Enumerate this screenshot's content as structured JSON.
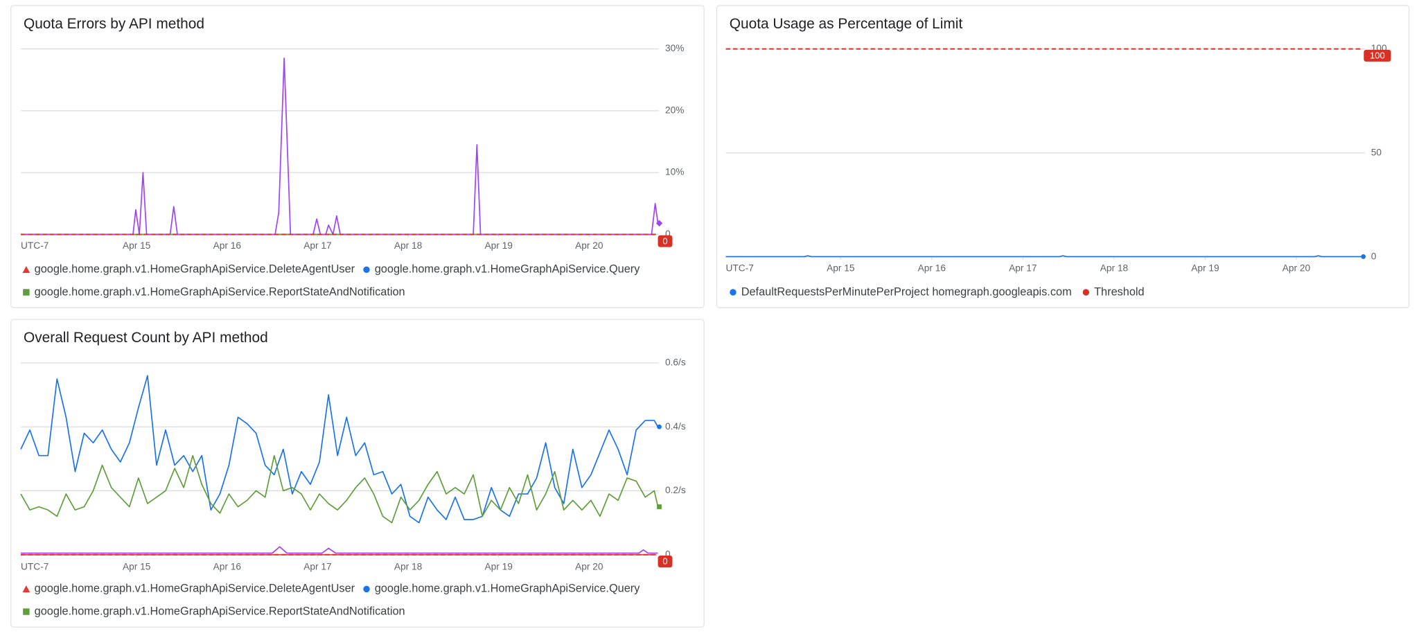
{
  "chart_data": [
    {
      "type": "line",
      "title": "Quota Errors by API method",
      "timezone_label": "UTC-7",
      "xlim": [
        13.72,
        20.74
      ],
      "xticks": [
        {
          "value": 15,
          "label": "Apr 15"
        },
        {
          "value": 16,
          "label": "Apr 16"
        },
        {
          "value": 17,
          "label": "Apr 17"
        },
        {
          "value": 18,
          "label": "Apr 18"
        },
        {
          "value": 19,
          "label": "Apr 19"
        },
        {
          "value": 20,
          "label": "Apr 20"
        }
      ],
      "ylim": [
        0,
        30
      ],
      "yticks": [
        0,
        {
          "value": 10,
          "label": "10%"
        },
        {
          "value": 20,
          "label": "20%"
        },
        {
          "value": 30,
          "label": "30%"
        }
      ],
      "grid": true,
      "threshold": {
        "value": 0,
        "color": "#d93025"
      },
      "series": [
        {
          "name": "google.home.graph.v1.HomeGraphApiService.DeleteAgentUser",
          "color": "#e53935",
          "marker": "triangle",
          "x": [
            13.72,
            20.74
          ],
          "values": [
            0,
            0
          ]
        },
        {
          "name": "google.home.graph.v1.HomeGraphApiService.Query",
          "color": "#1a73e8",
          "marker": "circle",
          "x": [
            13.72,
            20.74
          ],
          "values": [
            0,
            0
          ]
        },
        {
          "name": "google.home.graph.v1.HomeGraphApiService.ReportStateAndNotification",
          "color": "#5f9e3a",
          "marker": "square",
          "x": [
            13.72,
            20.74
          ],
          "values": [
            0,
            0
          ]
        },
        {
          "color": "#a142f4",
          "marker": "diamond",
          "end_marker": true,
          "x": [
            13.72,
            14.96,
            14.99,
            15.03,
            15.07,
            15.11,
            15.37,
            15.41,
            15.45,
            16.53,
            16.57,
            16.63,
            16.7,
            16.95,
            16.99,
            17.03,
            17.09,
            17.12,
            17.17,
            17.21,
            17.25,
            18.72,
            18.76,
            18.8,
            20.69,
            20.73,
            20.76
          ],
          "values": [
            0,
            0,
            4,
            0,
            10,
            0,
            0,
            4.5,
            0,
            0,
            3.5,
            28.5,
            0,
            0,
            2.5,
            0,
            0,
            1.5,
            0,
            3,
            0,
            0,
            14.5,
            0,
            0,
            5,
            1.8
          ]
        }
      ]
    },
    {
      "type": "line",
      "title": "Quota Usage as Percentage of Limit",
      "timezone_label": "UTC-7",
      "xlim": [
        13.74,
        20.72
      ],
      "xticks": [
        {
          "value": 15,
          "label": "Apr 15"
        },
        {
          "value": 16,
          "label": "Apr 16"
        },
        {
          "value": 17,
          "label": "Apr 17"
        },
        {
          "value": 18,
          "label": "Apr 18"
        },
        {
          "value": 19,
          "label": "Apr 19"
        },
        {
          "value": 20,
          "label": "Apr 20"
        }
      ],
      "ylim": [
        0,
        100
      ],
      "yticks": [
        0,
        50,
        100
      ],
      "grid": true,
      "threshold": {
        "name": "Threshold",
        "value": 100,
        "color": "#d93025"
      },
      "series": [
        {
          "name": "DefaultRequestsPerMinutePerProject homegraph.googleapis.com",
          "color": "#1a73e8",
          "marker": "circle",
          "end_marker": true,
          "x": [
            13.74,
            14.6,
            14.64,
            14.68,
            15.0,
            17.4,
            17.44,
            17.48,
            20.2,
            20.24,
            20.28,
            20.72
          ],
          "values": [
            0.2,
            0.2,
            0.6,
            0.2,
            0.2,
            0.2,
            0.6,
            0.2,
            0.2,
            0.6,
            0.2,
            0.2
          ]
        }
      ]
    },
    {
      "type": "line",
      "title": "Overall Request Count by API method",
      "timezone_label": "UTC-7",
      "xlim": [
        13.72,
        20.74
      ],
      "xticks": [
        {
          "value": 15,
          "label": "Apr 15"
        },
        {
          "value": 16,
          "label": "Apr 16"
        },
        {
          "value": 17,
          "label": "Apr 17"
        },
        {
          "value": 18,
          "label": "Apr 18"
        },
        {
          "value": 19,
          "label": "Apr 19"
        },
        {
          "value": 20,
          "label": "Apr 20"
        }
      ],
      "ylim": [
        0,
        0.6
      ],
      "yticks": [
        0,
        {
          "value": 0.2,
          "label": "0.2/s"
        },
        {
          "value": 0.4,
          "label": "0.4/s"
        },
        {
          "value": 0.6,
          "label": "0.6/s"
        }
      ],
      "grid": true,
      "threshold": {
        "value": 0,
        "color": "#d93025"
      },
      "series": [
        {
          "name": "google.home.graph.v1.HomeGraphApiService.DeleteAgentUser",
          "color": "#e53935",
          "marker": "triangle",
          "x": [
            13.72,
            20.74
          ],
          "values": [
            0,
            0
          ]
        },
        {
          "name": "google.home.graph.v1.HomeGraphApiService.Query",
          "color": "#1a73e8",
          "marker": "circle",
          "end_marker": true,
          "x": [
            13.72,
            13.82,
            13.92,
            14.02,
            14.12,
            14.22,
            14.32,
            14.42,
            14.52,
            14.62,
            14.72,
            14.82,
            14.92,
            15.02,
            15.12,
            15.22,
            15.32,
            15.42,
            15.52,
            15.62,
            15.72,
            15.82,
            15.92,
            16.02,
            16.12,
            16.22,
            16.32,
            16.42,
            16.52,
            16.62,
            16.72,
            16.82,
            16.92,
            17.02,
            17.12,
            17.22,
            17.32,
            17.42,
            17.52,
            17.62,
            17.72,
            17.82,
            17.92,
            18.02,
            18.12,
            18.22,
            18.32,
            18.42,
            18.52,
            18.62,
            18.72,
            18.82,
            18.92,
            19.02,
            19.12,
            19.22,
            19.32,
            19.42,
            19.52,
            19.62,
            19.72,
            19.82,
            19.92,
            20.02,
            20.12,
            20.22,
            20.32,
            20.42,
            20.52,
            20.62,
            20.72,
            20.76
          ],
          "values": [
            0.33,
            0.39,
            0.31,
            0.31,
            0.55,
            0.43,
            0.26,
            0.38,
            0.35,
            0.39,
            0.33,
            0.29,
            0.35,
            0.46,
            0.56,
            0.28,
            0.39,
            0.28,
            0.31,
            0.26,
            0.31,
            0.14,
            0.19,
            0.28,
            0.43,
            0.41,
            0.38,
            0.28,
            0.25,
            0.33,
            0.19,
            0.26,
            0.22,
            0.29,
            0.5,
            0.31,
            0.43,
            0.31,
            0.35,
            0.25,
            0.26,
            0.19,
            0.22,
            0.12,
            0.1,
            0.18,
            0.14,
            0.11,
            0.18,
            0.11,
            0.11,
            0.12,
            0.21,
            0.14,
            0.12,
            0.19,
            0.19,
            0.24,
            0.35,
            0.21,
            0.16,
            0.33,
            0.21,
            0.25,
            0.32,
            0.39,
            0.33,
            0.25,
            0.39,
            0.42,
            0.42,
            0.4
          ]
        },
        {
          "name": "google.home.graph.v1.HomeGraphApiService.ReportStateAndNotification",
          "color": "#5f9e3a",
          "marker": "square",
          "end_marker": true,
          "x": [
            13.72,
            13.82,
            13.92,
            14.02,
            14.12,
            14.22,
            14.32,
            14.42,
            14.52,
            14.62,
            14.72,
            14.82,
            14.92,
            15.02,
            15.12,
            15.22,
            15.32,
            15.42,
            15.52,
            15.62,
            15.72,
            15.82,
            15.92,
            16.02,
            16.12,
            16.22,
            16.32,
            16.42,
            16.52,
            16.62,
            16.72,
            16.82,
            16.92,
            17.02,
            17.12,
            17.22,
            17.32,
            17.42,
            17.52,
            17.62,
            17.72,
            17.82,
            17.92,
            18.02,
            18.12,
            18.22,
            18.32,
            18.42,
            18.52,
            18.62,
            18.72,
            18.82,
            18.92,
            19.02,
            19.12,
            19.22,
            19.32,
            19.42,
            19.52,
            19.62,
            19.72,
            19.82,
            19.92,
            20.02,
            20.12,
            20.22,
            20.32,
            20.42,
            20.52,
            20.62,
            20.72,
            20.76
          ],
          "values": [
            0.19,
            0.14,
            0.15,
            0.14,
            0.12,
            0.19,
            0.14,
            0.15,
            0.2,
            0.28,
            0.21,
            0.18,
            0.15,
            0.24,
            0.16,
            0.18,
            0.2,
            0.27,
            0.21,
            0.31,
            0.22,
            0.16,
            0.13,
            0.19,
            0.15,
            0.17,
            0.2,
            0.18,
            0.31,
            0.2,
            0.21,
            0.19,
            0.14,
            0.19,
            0.16,
            0.14,
            0.17,
            0.21,
            0.24,
            0.19,
            0.12,
            0.1,
            0.18,
            0.14,
            0.17,
            0.22,
            0.26,
            0.19,
            0.21,
            0.19,
            0.25,
            0.12,
            0.17,
            0.14,
            0.21,
            0.16,
            0.25,
            0.14,
            0.19,
            0.26,
            0.14,
            0.17,
            0.14,
            0.17,
            0.12,
            0.19,
            0.17,
            0.24,
            0.23,
            0.18,
            0.2,
            0.15
          ]
        },
        {
          "color": "#a142f4",
          "marker": "diamond",
          "x": [
            13.72,
            16.5,
            16.58,
            16.66,
            17.05,
            17.12,
            17.2,
            20.55,
            20.6,
            20.65,
            20.76
          ],
          "values": [
            0.005,
            0.005,
            0.025,
            0.005,
            0.005,
            0.02,
            0.005,
            0.005,
            0.015,
            0.005,
            0.005
          ]
        }
      ]
    }
  ]
}
